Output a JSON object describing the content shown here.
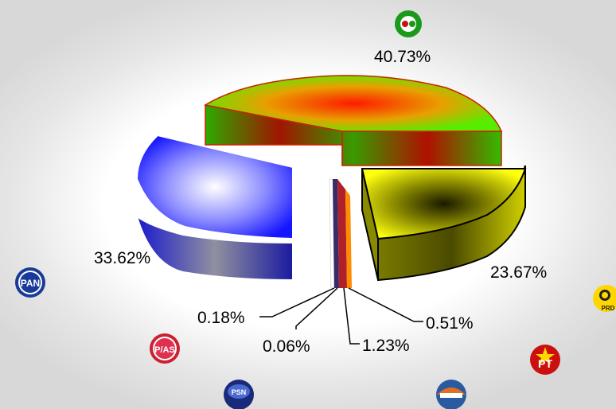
{
  "chart_data": {
    "type": "pie",
    "title": "",
    "slices": [
      {
        "value": 40.73,
        "label": "40.73%",
        "party": "PRI-PVEM",
        "color": "#00cc00",
        "logo_text": ""
      },
      {
        "value": 23.67,
        "label": "23.67%",
        "party": "PRD",
        "color": "#f2f200",
        "logo_text": "PRD"
      },
      {
        "value": 0.51,
        "label": "0.51%",
        "party": "PT",
        "color": "#ff8c00",
        "logo_text": "PT"
      },
      {
        "value": 1.23,
        "label": "1.23%",
        "party": "Nueva Alianza",
        "color": "#b0202a",
        "logo_text": ""
      },
      {
        "value": 0.06,
        "label": "0.06%",
        "party": "PSN",
        "color": "#3a2a6a",
        "logo_text": "PSN"
      },
      {
        "value": 0.18,
        "label": "0.18%",
        "party": "PAS",
        "color": "#d7d7d7",
        "logo_text": "P/AS"
      },
      {
        "value": 33.62,
        "label": "33.62%",
        "party": "PAN",
        "color": "#2b2bff",
        "logo_text": "PAN"
      }
    ]
  }
}
